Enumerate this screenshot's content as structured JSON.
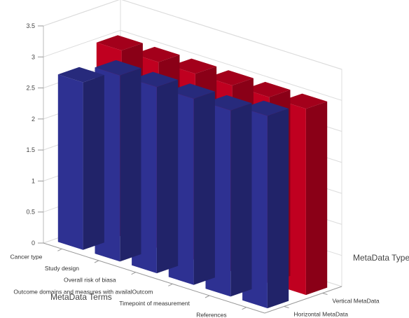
{
  "chart_data": {
    "type": "bar",
    "subtype": "3d-clustered-bar",
    "title": "",
    "y_axis": {
      "label": "",
      "ylim": [
        0,
        3.5
      ],
      "ticks": [
        "0",
        "0.5",
        "1",
        "1.5",
        "2",
        "2.5",
        "3",
        "3.5"
      ]
    },
    "x_axis": {
      "label": "MetaData Terms",
      "categories": [
        "Cancer type",
        "Study design",
        "Overall risk of biasa",
        "Outcome domains and measures with availalOutcom",
        "Timepoint of measurement",
        "References"
      ]
    },
    "z_axis": {
      "label": "MetaData Types",
      "categories": [
        "Horizontal MetaData",
        "Vertical MetaData"
      ]
    },
    "series": [
      {
        "name": "Horizontal MetaData",
        "color": "#2e3192",
        "values": [
          2.7,
          3.0,
          3.0,
          3.0,
          3.0,
          3.1
        ]
      },
      {
        "name": "Vertical MetaData",
        "color": "#c00020",
        "values": [
          3.0,
          3.0,
          3.0,
          3.0,
          3.0,
          3.0
        ]
      }
    ],
    "grid": true,
    "legend": "none"
  }
}
